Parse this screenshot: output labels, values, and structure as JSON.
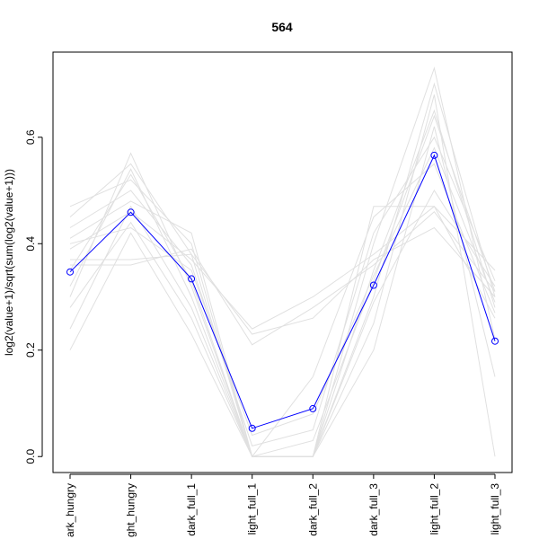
{
  "chart_data": {
    "type": "line",
    "title": "564",
    "xlabel": "",
    "ylabel": "log2(value+1)/sqrt(sum(log2(value+1)))",
    "categories": [
      "dark_hungry",
      "light_hungry",
      "dark_full_1",
      "light_full_1",
      "dark_full_2",
      "dark_full_3",
      "light_full_2",
      "light_full_3"
    ],
    "visible_tick_labels": [
      "ark_hungry",
      "ght_hungry",
      "dark_full_1",
      "light_full_1",
      "dark_full_2",
      "dark_full_3",
      "light_full_2",
      "light_full_3"
    ],
    "y_ticks": [
      0.0,
      0.2,
      0.4,
      0.6
    ],
    "y_tick_labels": [
      "0.0",
      "0.2",
      "0.4",
      "0.6"
    ],
    "ylim": [
      -0.03,
      0.76
    ],
    "grid": false,
    "highlight_series": {
      "color": "#0000ff",
      "marker": "open-circle",
      "values": [
        0.347,
        0.459,
        0.334,
        0.053,
        0.09,
        0.322,
        0.566,
        0.217
      ]
    },
    "background_series_color": "#e0e0e0",
    "background_series": [
      {
        "values": [
          0.47,
          0.52,
          0.4,
          0.0,
          0.0,
          0.3,
          0.7,
          0.3
        ]
      },
      {
        "values": [
          0.45,
          0.55,
          0.38,
          0.0,
          0.0,
          0.35,
          0.65,
          0.28
        ]
      },
      {
        "values": [
          0.43,
          0.5,
          0.36,
          0.02,
          0.05,
          0.42,
          0.6,
          0.33
        ]
      },
      {
        "values": [
          0.41,
          0.48,
          0.42,
          0.0,
          0.0,
          0.4,
          0.73,
          0.22
        ]
      },
      {
        "values": [
          0.39,
          0.46,
          0.37,
          0.24,
          0.3,
          0.38,
          0.47,
          0.26
        ]
      },
      {
        "values": [
          0.37,
          0.37,
          0.38,
          0.23,
          0.26,
          0.37,
          0.43,
          0.3
        ]
      },
      {
        "values": [
          0.36,
          0.36,
          0.39,
          0.21,
          0.28,
          0.36,
          0.46,
          0.31
        ]
      },
      {
        "values": [
          0.32,
          0.54,
          0.3,
          0.0,
          0.0,
          0.47,
          0.47,
          0.35
        ]
      },
      {
        "values": [
          0.3,
          0.57,
          0.32,
          0.0,
          0.0,
          0.25,
          0.68,
          0.0
        ]
      },
      {
        "values": [
          0.28,
          0.44,
          0.26,
          0.0,
          0.0,
          0.2,
          0.62,
          0.15
        ]
      },
      {
        "values": [
          0.24,
          0.47,
          0.28,
          0.0,
          0.15,
          0.45,
          0.55,
          0.27
        ]
      },
      {
        "values": [
          0.2,
          0.42,
          0.23,
          0.0,
          0.0,
          0.29,
          0.5,
          0.32
        ]
      },
      {
        "values": [
          0.4,
          0.43,
          0.35,
          0.04,
          0.08,
          0.34,
          0.58,
          0.29
        ]
      },
      {
        "values": [
          0.35,
          0.53,
          0.33,
          0.0,
          0.03,
          0.33,
          0.64,
          0.31
        ]
      }
    ]
  }
}
